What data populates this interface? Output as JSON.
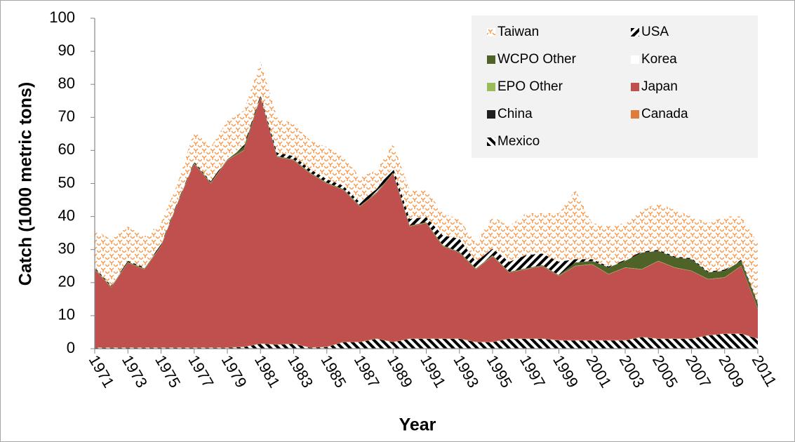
{
  "chart_data": {
    "type": "stacked_area",
    "x_label": "Year",
    "y_label": "Catch (1000 metric tons)",
    "x": [
      1971,
      1972,
      1973,
      1974,
      1975,
      1976,
      1977,
      1978,
      1979,
      1980,
      1981,
      1982,
      1983,
      1984,
      1985,
      1986,
      1987,
      1988,
      1989,
      1990,
      1991,
      1992,
      1993,
      1994,
      1995,
      1996,
      1997,
      1998,
      1999,
      2000,
      2001,
      2002,
      2003,
      2004,
      2005,
      2006,
      2007,
      2008,
      2009,
      2010,
      2011
    ],
    "xlim": [
      1971,
      2011
    ],
    "xticks": [
      1971,
      1973,
      1975,
      1977,
      1979,
      1981,
      1983,
      1985,
      1987,
      1989,
      1991,
      1993,
      1995,
      1997,
      1999,
      2001,
      2003,
      2005,
      2007,
      2009,
      2011
    ],
    "ylim": [
      0,
      100
    ],
    "yticks": [
      0,
      10,
      20,
      30,
      40,
      50,
      60,
      70,
      80,
      90,
      100
    ],
    "legend": "upper right",
    "series": [
      {
        "name": "Mexico",
        "color": "#000000",
        "pattern": "stripes-back",
        "values": [
          0.3,
          0.3,
          0.3,
          0.3,
          0.3,
          0.3,
          0.3,
          0.3,
          0.3,
          0.5,
          1.5,
          1.2,
          1.5,
          0.3,
          0.5,
          2,
          2,
          3,
          2,
          3,
          3,
          3,
          3,
          2,
          2,
          3,
          3,
          3,
          2.5,
          2.5,
          2.5,
          2.5,
          2.5,
          3.5,
          3,
          3,
          3,
          4,
          4.5,
          4.5,
          3
        ]
      },
      {
        "name": "Canada",
        "color": "#e07b39",
        "values": [
          0.1,
          0.1,
          0.1,
          0.1,
          0.1,
          0.1,
          0.1,
          0.1,
          0.1,
          0.1,
          0.1,
          0.1,
          0.1,
          0.1,
          0.1,
          0.1,
          0.1,
          0.1,
          0.1,
          0.1,
          0.1,
          0.1,
          0.1,
          0.1,
          0.1,
          0.1,
          0.1,
          0.1,
          0.1,
          0.1,
          0.1,
          0.1,
          0.1,
          0.1,
          0.1,
          0.1,
          0.1,
          0.1,
          0.1,
          0.1,
          0.1
        ]
      },
      {
        "name": "China",
        "color": "#1f1f1f",
        "values": [
          0,
          0,
          0,
          0,
          0,
          0,
          0,
          0,
          0,
          0,
          0,
          0,
          0,
          0,
          0,
          0,
          0,
          0,
          0,
          0,
          0,
          0,
          0,
          0,
          0,
          0,
          0,
          0,
          0,
          0,
          0,
          0,
          0,
          0,
          0,
          0,
          0,
          0,
          0,
          0,
          0
        ]
      },
      {
        "name": "Japan",
        "color": "#c0504d",
        "values": [
          23.6,
          18.1,
          25.6,
          23.6,
          30.6,
          43.6,
          55.6,
          49.6,
          56.6,
          59.4,
          74.4,
          56.7,
          55.4,
          52.6,
          49.4,
          45.9,
          40.9,
          43.9,
          50.9,
          33.9,
          34.9,
          27.9,
          25.9,
          21.9,
          25.9,
          19.9,
          20.9,
          21.9,
          19.4,
          22.4,
          22.9,
          19.9,
          21.9,
          20.4,
          23.4,
          21.4,
          20.4,
          16.9,
          16.9,
          20.4,
          8.9
        ]
      },
      {
        "name": "EPO Other",
        "color": "#9bbb59",
        "values": [
          0.1,
          0.1,
          0.1,
          0.1,
          0.1,
          0.1,
          0.1,
          0.1,
          0.1,
          0.1,
          0.1,
          0.1,
          0.1,
          0.1,
          0.1,
          0.1,
          0.1,
          0.1,
          0.1,
          0.1,
          0.1,
          0.1,
          0.1,
          0.1,
          0.1,
          0.1,
          0.1,
          0.1,
          0.1,
          0.1,
          0.1,
          0.1,
          0.1,
          0.1,
          0.1,
          0.1,
          0.1,
          0.1,
          0.1,
          0.1,
          0.1
        ]
      },
      {
        "name": "Korea",
        "color": "#ffffff",
        "values": [
          0,
          0,
          0,
          0,
          0,
          0,
          0,
          0,
          0,
          0,
          0,
          0,
          0,
          0,
          0,
          0,
          0,
          0,
          0,
          0,
          0,
          0,
          0,
          0,
          0,
          0,
          0,
          0,
          0,
          0,
          0,
          0,
          0,
          0,
          0,
          0,
          0,
          0,
          0,
          0,
          0
        ]
      },
      {
        "name": "WCPO Other",
        "color": "#4f6228",
        "values": [
          0.2,
          0.2,
          0.2,
          0.2,
          0.2,
          0.2,
          0.2,
          0.2,
          0.2,
          1,
          0.2,
          0.2,
          0.2,
          0.2,
          0.2,
          0.2,
          0.2,
          0.2,
          0.2,
          0.2,
          0.2,
          0.2,
          0.2,
          0.2,
          0.2,
          0.2,
          0.2,
          0.2,
          0.2,
          1,
          1,
          2,
          2,
          5,
          3,
          3,
          3.5,
          2,
          2,
          1.5,
          1.5
        ]
      },
      {
        "name": "USA",
        "color": "#000000",
        "pattern": "stripes",
        "values": [
          0.3,
          0.3,
          0.3,
          0.3,
          0.3,
          0.3,
          0.3,
          0.3,
          0.5,
          0.5,
          0.5,
          1,
          1,
          1,
          1,
          1,
          1,
          1,
          1.5,
          2,
          1.5,
          3,
          4,
          2,
          2,
          3,
          4,
          3.5,
          4,
          1,
          0.5,
          0.3,
          0.3,
          0.3,
          0.3,
          0.3,
          0.3,
          0.3,
          0.3,
          0.3,
          0.3
        ]
      },
      {
        "name": "Taiwan",
        "color": "#f79646",
        "pattern": "zigzag",
        "values": [
          11.4,
          13.9,
          10.4,
          9.4,
          6.4,
          5.4,
          9.4,
          10.4,
          11.2,
          10.4,
          10.2,
          10.7,
          9.7,
          8.7,
          9.7,
          8.7,
          7.7,
          5.7,
          7.2,
          8.7,
          8.2,
          6.7,
          5.7,
          5.7,
          9.7,
          10.7,
          12.7,
          12.2,
          14.7,
          20.9,
          10.9,
          12.1,
          11.1,
          12.6,
          14.1,
          14.1,
          12.6,
          14.6,
          16.1,
          13.1,
          18.1
        ]
      }
    ]
  }
}
